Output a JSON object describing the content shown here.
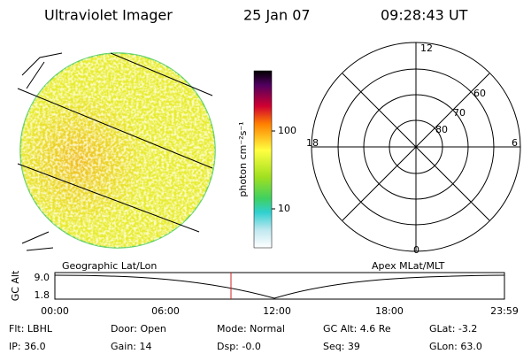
{
  "header": {
    "instrument": "Ultraviolet Imager",
    "date": "25 Jan 07",
    "time": "09:28:43 UT"
  },
  "colorbar": {
    "label": "photon cm⁻²s⁻¹",
    "ticks": [
      "100",
      "10"
    ]
  },
  "polar": {
    "mlt_labels": [
      "12",
      "18",
      "6",
      "0"
    ],
    "lat_labels": [
      "60",
      "70",
      "80"
    ]
  },
  "altitude_plot": {
    "left_title": "Geographic Lat/Lon",
    "right_title": "Apex MLat/MLT",
    "ylabel": "GC Alt",
    "yticks": [
      "9.0",
      "1.8"
    ],
    "xticks": [
      "00:00",
      "06:00",
      "12:00",
      "18:00",
      "23:59"
    ]
  },
  "status": {
    "rows": [
      [
        "Flt: LBHL",
        "Door: Open",
        "Mode: Normal",
        "GC Alt: 4.6 Re",
        "GLat: -3.2"
      ],
      [
        "IP: 36.0",
        "Gain: 14",
        "Dsp: -0.0",
        "Seq: 39",
        "GLon: 63.0"
      ]
    ]
  }
}
